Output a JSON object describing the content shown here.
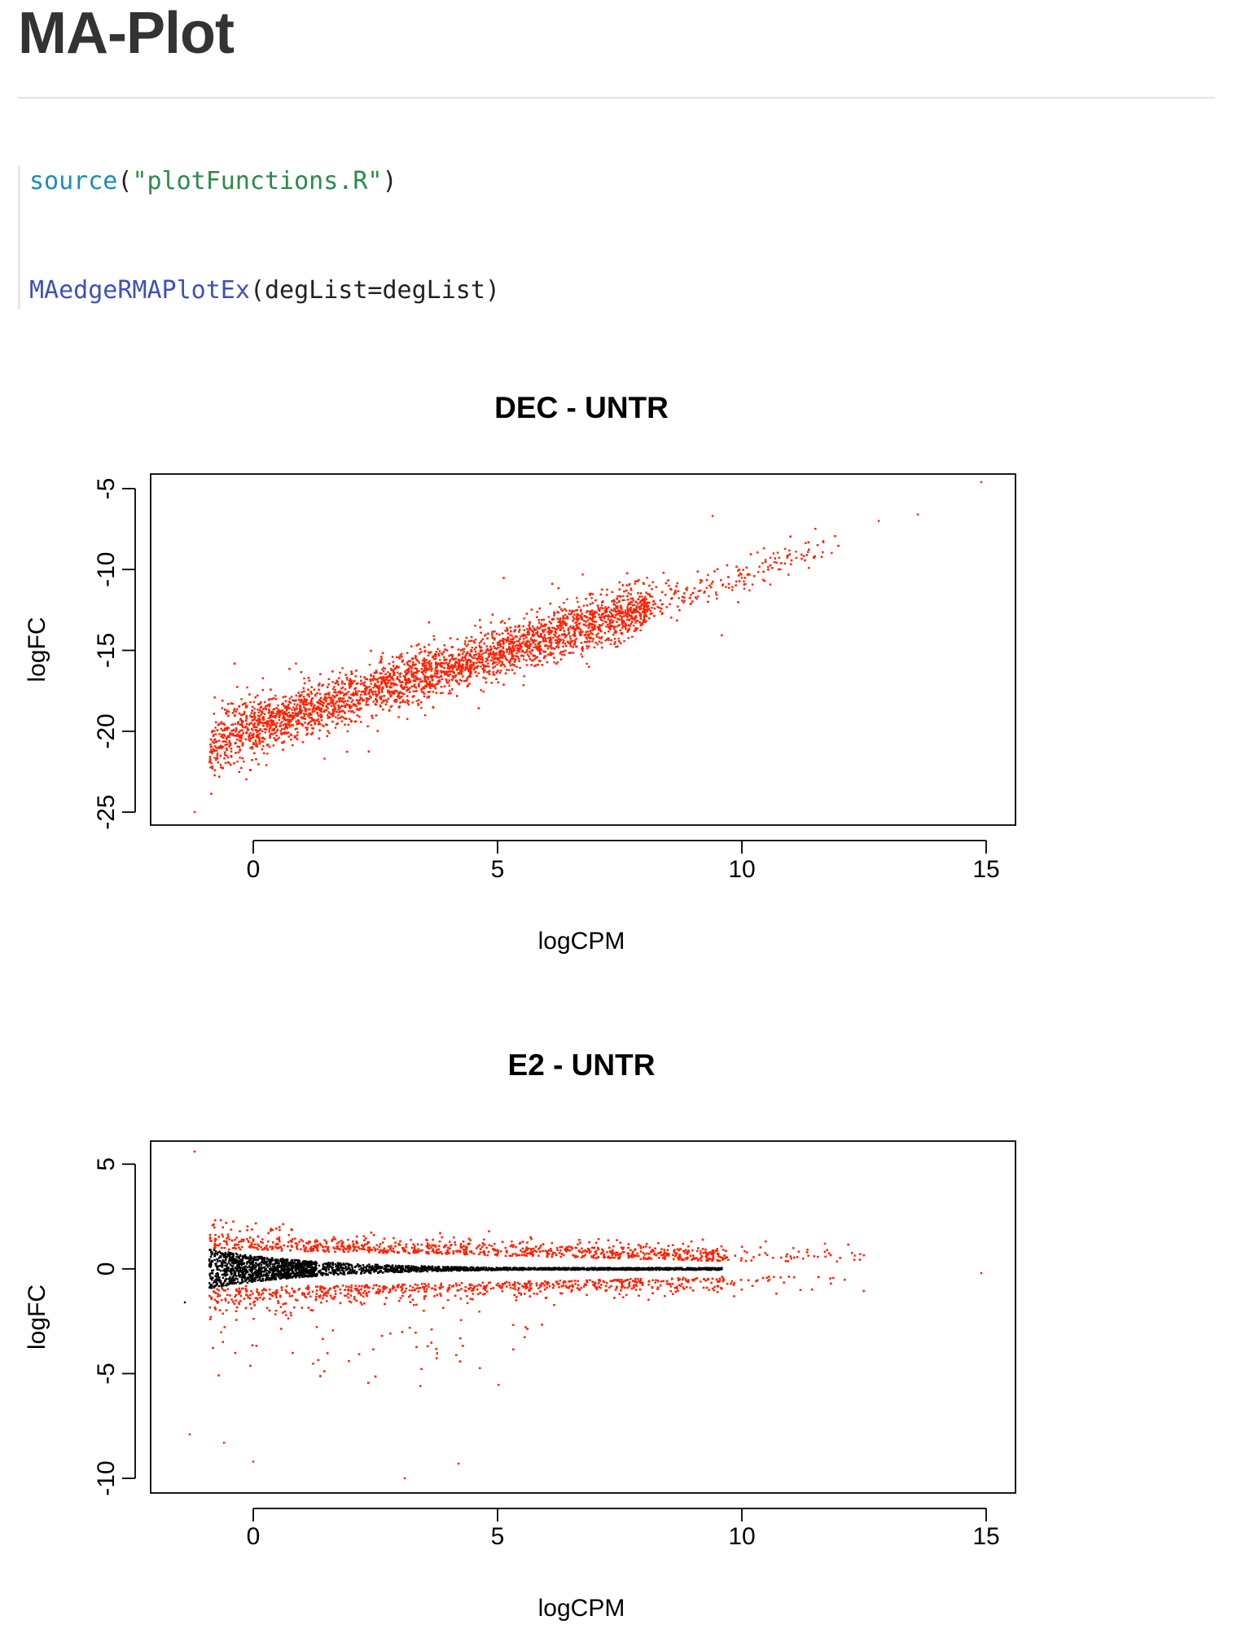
{
  "page": {
    "title": "MA-Plot"
  },
  "code": {
    "line1": {
      "fn": "source",
      "open": "(",
      "arg": "\"plotFunctions.R\"",
      "close": ")"
    },
    "line2": {
      "fn": "MAedgeRMAPlotEx",
      "args": "(degList=degList)"
    }
  },
  "colors": {
    "significant": "#ff2200",
    "not_significant": "#000000",
    "code_source_fn": "#1c8cb8",
    "code_string": "#2b8a4a",
    "code_plot_fn": "#3f51b5"
  },
  "chart_data": [
    {
      "type": "scatter",
      "title": "DEC - UNTR",
      "xlabel": "logCPM",
      "ylabel": "logFC",
      "xlim": [
        -2.1,
        15.6
      ],
      "ylim": [
        -25.8,
        -4.1
      ],
      "xticks": [
        0,
        5,
        10,
        15
      ],
      "yticks": [
        -5,
        -10,
        -15,
        -20,
        -25
      ],
      "grid": false,
      "series": [
        {
          "color": "#ff2200",
          "approx_trend": {
            "x": [
              -0.8,
              0,
              5,
              10,
              15
            ],
            "y": [
              -20.8,
              -19.8,
              -15.1,
              -10.5,
              -4.7
            ]
          },
          "spread_sd": 0.9,
          "outliers": [
            [
              -1.2,
              -25.0
            ],
            [
              14.9,
              -4.6
            ],
            [
              9.4,
              -6.7
            ],
            [
              12.8,
              -7.0
            ],
            [
              13.6,
              -6.6
            ]
          ]
        }
      ]
    },
    {
      "type": "scatter",
      "title": "E2 - UNTR",
      "xlabel": "logCPM",
      "ylabel": "logFC",
      "xlim": [
        -2.1,
        15.6
      ],
      "ylim": [
        -10.7,
        6.1
      ],
      "xticks": [
        0,
        5,
        10,
        15
      ],
      "yticks": [
        5,
        0,
        -5,
        -10
      ],
      "grid": false,
      "series": [
        {
          "color": "#000000",
          "description_range": {
            "x": [
              -1.4,
              9.8
            ],
            "y": [
              -1.7,
              1.0
            ]
          }
        },
        {
          "color": "#ff2200",
          "description_range": {
            "x": [
              -1.3,
              15.0
            ],
            "y": [
              -10.0,
              5.6
            ]
          },
          "outliers": [
            [
              -1.2,
              5.6
            ],
            [
              3.1,
              -10.0
            ],
            [
              4.2,
              -9.3
            ],
            [
              0.0,
              -9.2
            ],
            [
              -0.6,
              -8.3
            ],
            [
              -1.3,
              -7.9
            ],
            [
              11.7,
              1.2
            ],
            [
              14.9,
              -0.2
            ]
          ]
        }
      ]
    }
  ]
}
